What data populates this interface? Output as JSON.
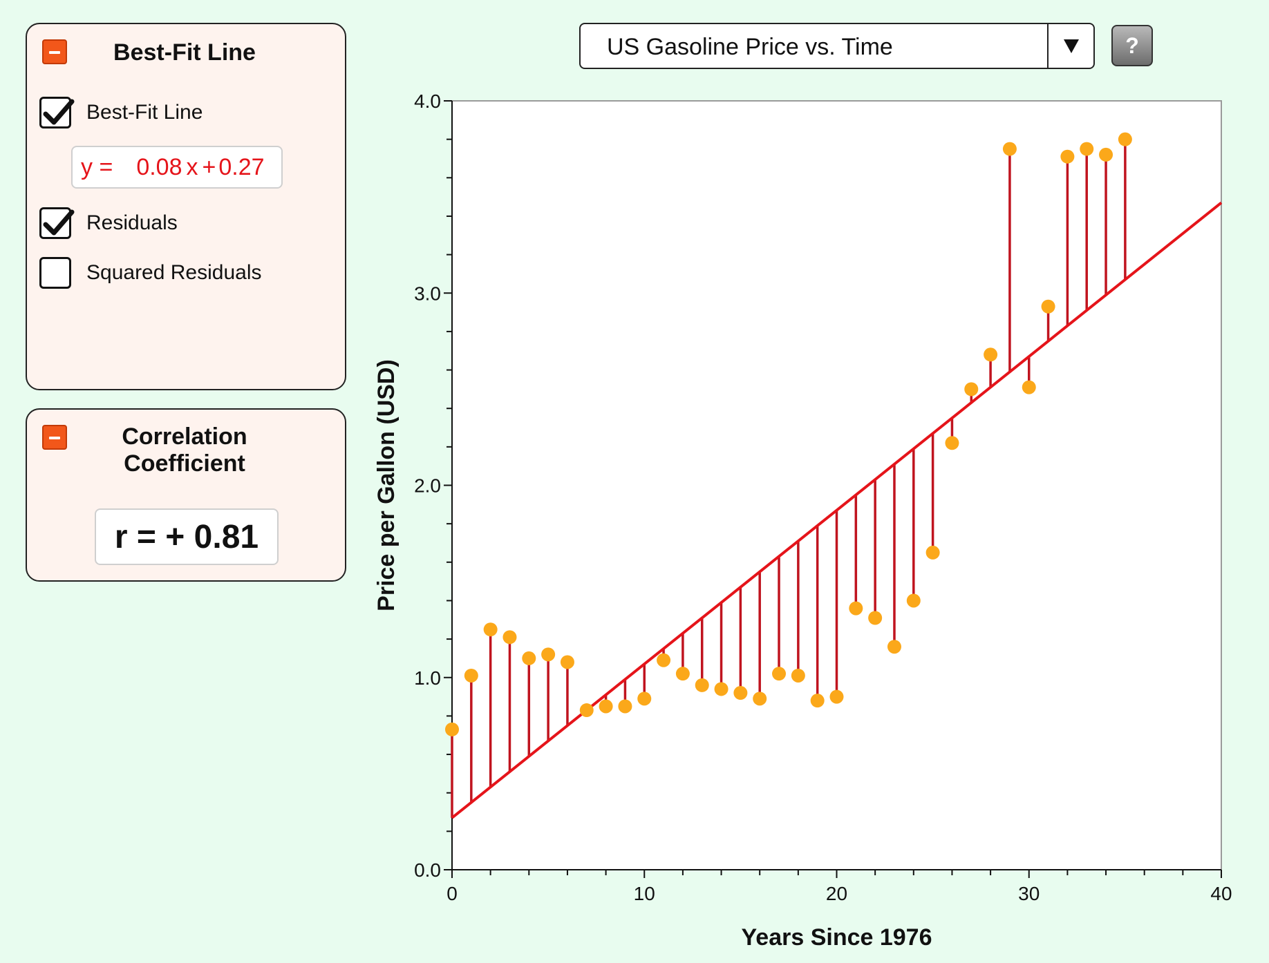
{
  "best_fit_panel": {
    "title": "Best-Fit Line",
    "checkboxes": [
      {
        "label": "Best-Fit Line",
        "checked": true
      },
      {
        "label": "Residuals",
        "checked": true
      },
      {
        "label": "Squared Residuals",
        "checked": false
      }
    ],
    "equation": {
      "prefix": "y =",
      "slope": "0.08",
      "x": "x",
      "plus": "+",
      "intercept": "0.27"
    }
  },
  "correlation_panel": {
    "title_line1": "Correlation",
    "title_line2": "Coefficient",
    "value": "r = + 0.81"
  },
  "dataset_select": {
    "selected": "US Gasoline Price vs. Time"
  },
  "help_button": {
    "label": "?"
  },
  "colors": {
    "background": "#e8fcef",
    "panel": "#fef3ee",
    "collapse_button": "#f2571a",
    "equation_text": "#e5141a",
    "fit_line": "#e5141a",
    "residual": "#c0141f",
    "points": "#fba81a"
  },
  "chart_data": {
    "type": "scatter",
    "xlabel": "Years Since 1976",
    "ylabel": "Price per Gallon (USD)",
    "xlim": [
      0,
      40
    ],
    "ylim": [
      0,
      4
    ],
    "x_ticks": [
      "0",
      "10",
      "20",
      "30",
      "40"
    ],
    "y_ticks": [
      "0.0",
      "1.0",
      "2.0",
      "3.0",
      "4.0"
    ],
    "fit_line": {
      "slope": 0.08,
      "intercept": 0.27
    },
    "points": [
      [
        0,
        0.73
      ],
      [
        1,
        1.01
      ],
      [
        2,
        1.25
      ],
      [
        3,
        1.21
      ],
      [
        4,
        1.1
      ],
      [
        5,
        1.12
      ],
      [
        6,
        1.08
      ],
      [
        7,
        0.83
      ],
      [
        8,
        0.85
      ],
      [
        9,
        0.85
      ],
      [
        10,
        0.89
      ],
      [
        11,
        1.09
      ],
      [
        12,
        1.02
      ],
      [
        13,
        0.96
      ],
      [
        14,
        0.94
      ],
      [
        15,
        0.92
      ],
      [
        16,
        0.89
      ],
      [
        17,
        1.02
      ],
      [
        18,
        1.01
      ],
      [
        19,
        0.88
      ],
      [
        20,
        0.9
      ],
      [
        21,
        1.36
      ],
      [
        22,
        1.31
      ],
      [
        23,
        1.16
      ],
      [
        24,
        1.4
      ],
      [
        25,
        1.65
      ],
      [
        26,
        2.22
      ],
      [
        27,
        2.5
      ],
      [
        28,
        2.68
      ],
      [
        29,
        3.75
      ],
      [
        30,
        2.51
      ],
      [
        31,
        2.93
      ],
      [
        32,
        3.71
      ],
      [
        33,
        3.75
      ],
      [
        34,
        3.72
      ],
      [
        35,
        3.8
      ]
    ]
  }
}
